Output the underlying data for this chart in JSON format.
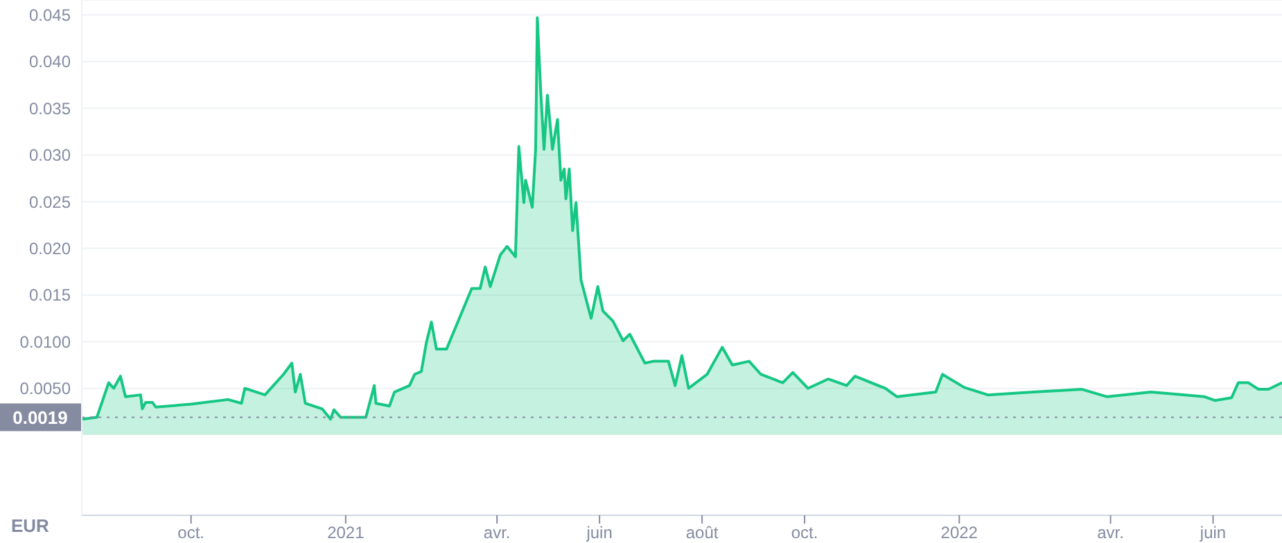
{
  "chart_data": {
    "type": "area",
    "ylabel": "EUR",
    "color": "#16c784",
    "x": [
      "2020-07-28",
      "2020-08-06",
      "2020-08-13",
      "2020-08-16",
      "2020-08-20",
      "2020-08-23",
      "2020-09-01",
      "2020-09-02",
      "2020-09-04",
      "2020-09-08",
      "2020-09-10",
      "2020-10-01",
      "2020-10-23",
      "2020-10-31",
      "2020-11-02",
      "2020-11-14",
      "2020-11-19",
      "2020-11-25",
      "2020-11-30",
      "2020-12-02",
      "2020-12-05",
      "2020-12-08",
      "2020-12-18",
      "2020-12-23",
      "2020-12-25",
      "2020-12-29",
      "2021-01-13",
      "2021-01-18",
      "2021-01-19",
      "2021-01-27",
      "2021-01-30",
      "2021-02-08",
      "2021-02-11",
      "2021-02-15",
      "2021-02-18",
      "2021-02-21",
      "2021-02-24",
      "2021-03-02",
      "2021-03-08",
      "2021-03-17",
      "2021-03-22",
      "2021-03-25",
      "2021-03-28",
      "2021-04-03",
      "2021-04-07",
      "2021-04-12",
      "2021-04-14",
      "2021-04-17",
      "2021-04-18",
      "2021-04-22",
      "2021-04-24",
      "2021-04-25",
      "2021-04-27",
      "2021-04-29",
      "2021-05-01",
      "2021-05-04",
      "2021-05-07",
      "2021-05-09",
      "2021-05-11",
      "2021-05-12",
      "2021-05-14",
      "2021-05-16",
      "2021-05-18",
      "2021-05-21",
      "2021-05-27",
      "2021-05-31",
      "2021-06-03",
      "2021-06-09",
      "2021-06-15",
      "2021-06-19",
      "2021-06-28",
      "2021-07-03",
      "2021-07-12",
      "2021-07-16",
      "2021-07-20",
      "2021-07-24",
      "2021-08-04",
      "2021-08-13",
      "2021-08-19",
      "2021-08-29",
      "2021-09-05",
      "2021-09-18",
      "2021-09-24",
      "2021-10-03",
      "2021-10-15",
      "2021-10-26",
      "2021-10-31",
      "2021-11-18",
      "2021-11-25",
      "2021-12-18",
      "2021-12-22",
      "2022-01-04",
      "2022-01-18",
      "2022-02-14",
      "2022-03-15",
      "2022-03-30",
      "2022-04-25",
      "2022-05-27",
      "2022-06-02",
      "2022-06-12",
      "2022-06-16",
      "2022-06-22",
      "2022-06-28",
      "2022-07-04",
      "2022-07-12"
    ],
    "values": [
      0.0017,
      0.0019,
      0.0056,
      0.005,
      0.0063,
      0.0041,
      0.0043,
      0.0028,
      0.0035,
      0.0035,
      0.003,
      0.0033,
      0.0038,
      0.0034,
      0.005,
      0.0043,
      0.0053,
      0.0065,
      0.0077,
      0.0046,
      0.0065,
      0.0034,
      0.0028,
      0.0017,
      0.0027,
      0.0019,
      0.0019,
      0.0053,
      0.0034,
      0.0031,
      0.0046,
      0.0053,
      0.0065,
      0.0068,
      0.0099,
      0.0121,
      0.0092,
      0.0092,
      0.0118,
      0.0157,
      0.0157,
      0.018,
      0.0159,
      0.0193,
      0.0202,
      0.0191,
      0.0309,
      0.0249,
      0.0273,
      0.0244,
      0.0306,
      0.0447,
      0.0369,
      0.0306,
      0.0364,
      0.0306,
      0.0338,
      0.0273,
      0.0285,
      0.0253,
      0.0285,
      0.0219,
      0.0249,
      0.0166,
      0.0125,
      0.0159,
      0.0133,
      0.0122,
      0.0101,
      0.0108,
      0.0077,
      0.0079,
      0.0079,
      0.0053,
      0.0085,
      0.005,
      0.0065,
      0.0094,
      0.0075,
      0.0079,
      0.0065,
      0.0056,
      0.0067,
      0.005,
      0.006,
      0.0053,
      0.0063,
      0.005,
      0.0041,
      0.0046,
      0.0065,
      0.0051,
      0.0043,
      0.0046,
      0.0049,
      0.0041,
      0.0046,
      0.0041,
      0.0037,
      0.004,
      0.0056,
      0.0056,
      0.0049,
      0.0049,
      0.0056
    ],
    "xlim": [
      "2020-07-28",
      "2022-07-12"
    ],
    "xticks": [
      {
        "value": "2020-10-01",
        "label": "oct."
      },
      {
        "value": "2021-01-01",
        "label": "2021"
      },
      {
        "value": "2021-04-01",
        "label": "avr."
      },
      {
        "value": "2021-06-01",
        "label": "juin"
      },
      {
        "value": "2021-08-01",
        "label": "août"
      },
      {
        "value": "2021-10-01",
        "label": "oct."
      },
      {
        "value": "2022-01-01",
        "label": "2022"
      },
      {
        "value": "2022-04-01",
        "label": "avr."
      },
      {
        "value": "2022-06-01",
        "label": "juin"
      }
    ],
    "ylim": [
      -0.0086,
      0.0466
    ],
    "yticks": [
      {
        "value": 0.005,
        "label": "0.0050"
      },
      {
        "value": 0.01,
        "label": "0.0100"
      },
      0.015,
      {
        "value": 0.02,
        "label": "0.020"
      },
      0.025,
      {
        "value": 0.03,
        "label": "0.030"
      },
      0.035,
      {
        "value": 0.04,
        "label": "0.040"
      },
      0.045
    ],
    "grid": "y",
    "ref_lines": [
      {
        "axis": "y",
        "value": 0.0019,
        "label": "0.0019",
        "color": "#858ca2",
        "line_style": "dotted"
      }
    ]
  }
}
